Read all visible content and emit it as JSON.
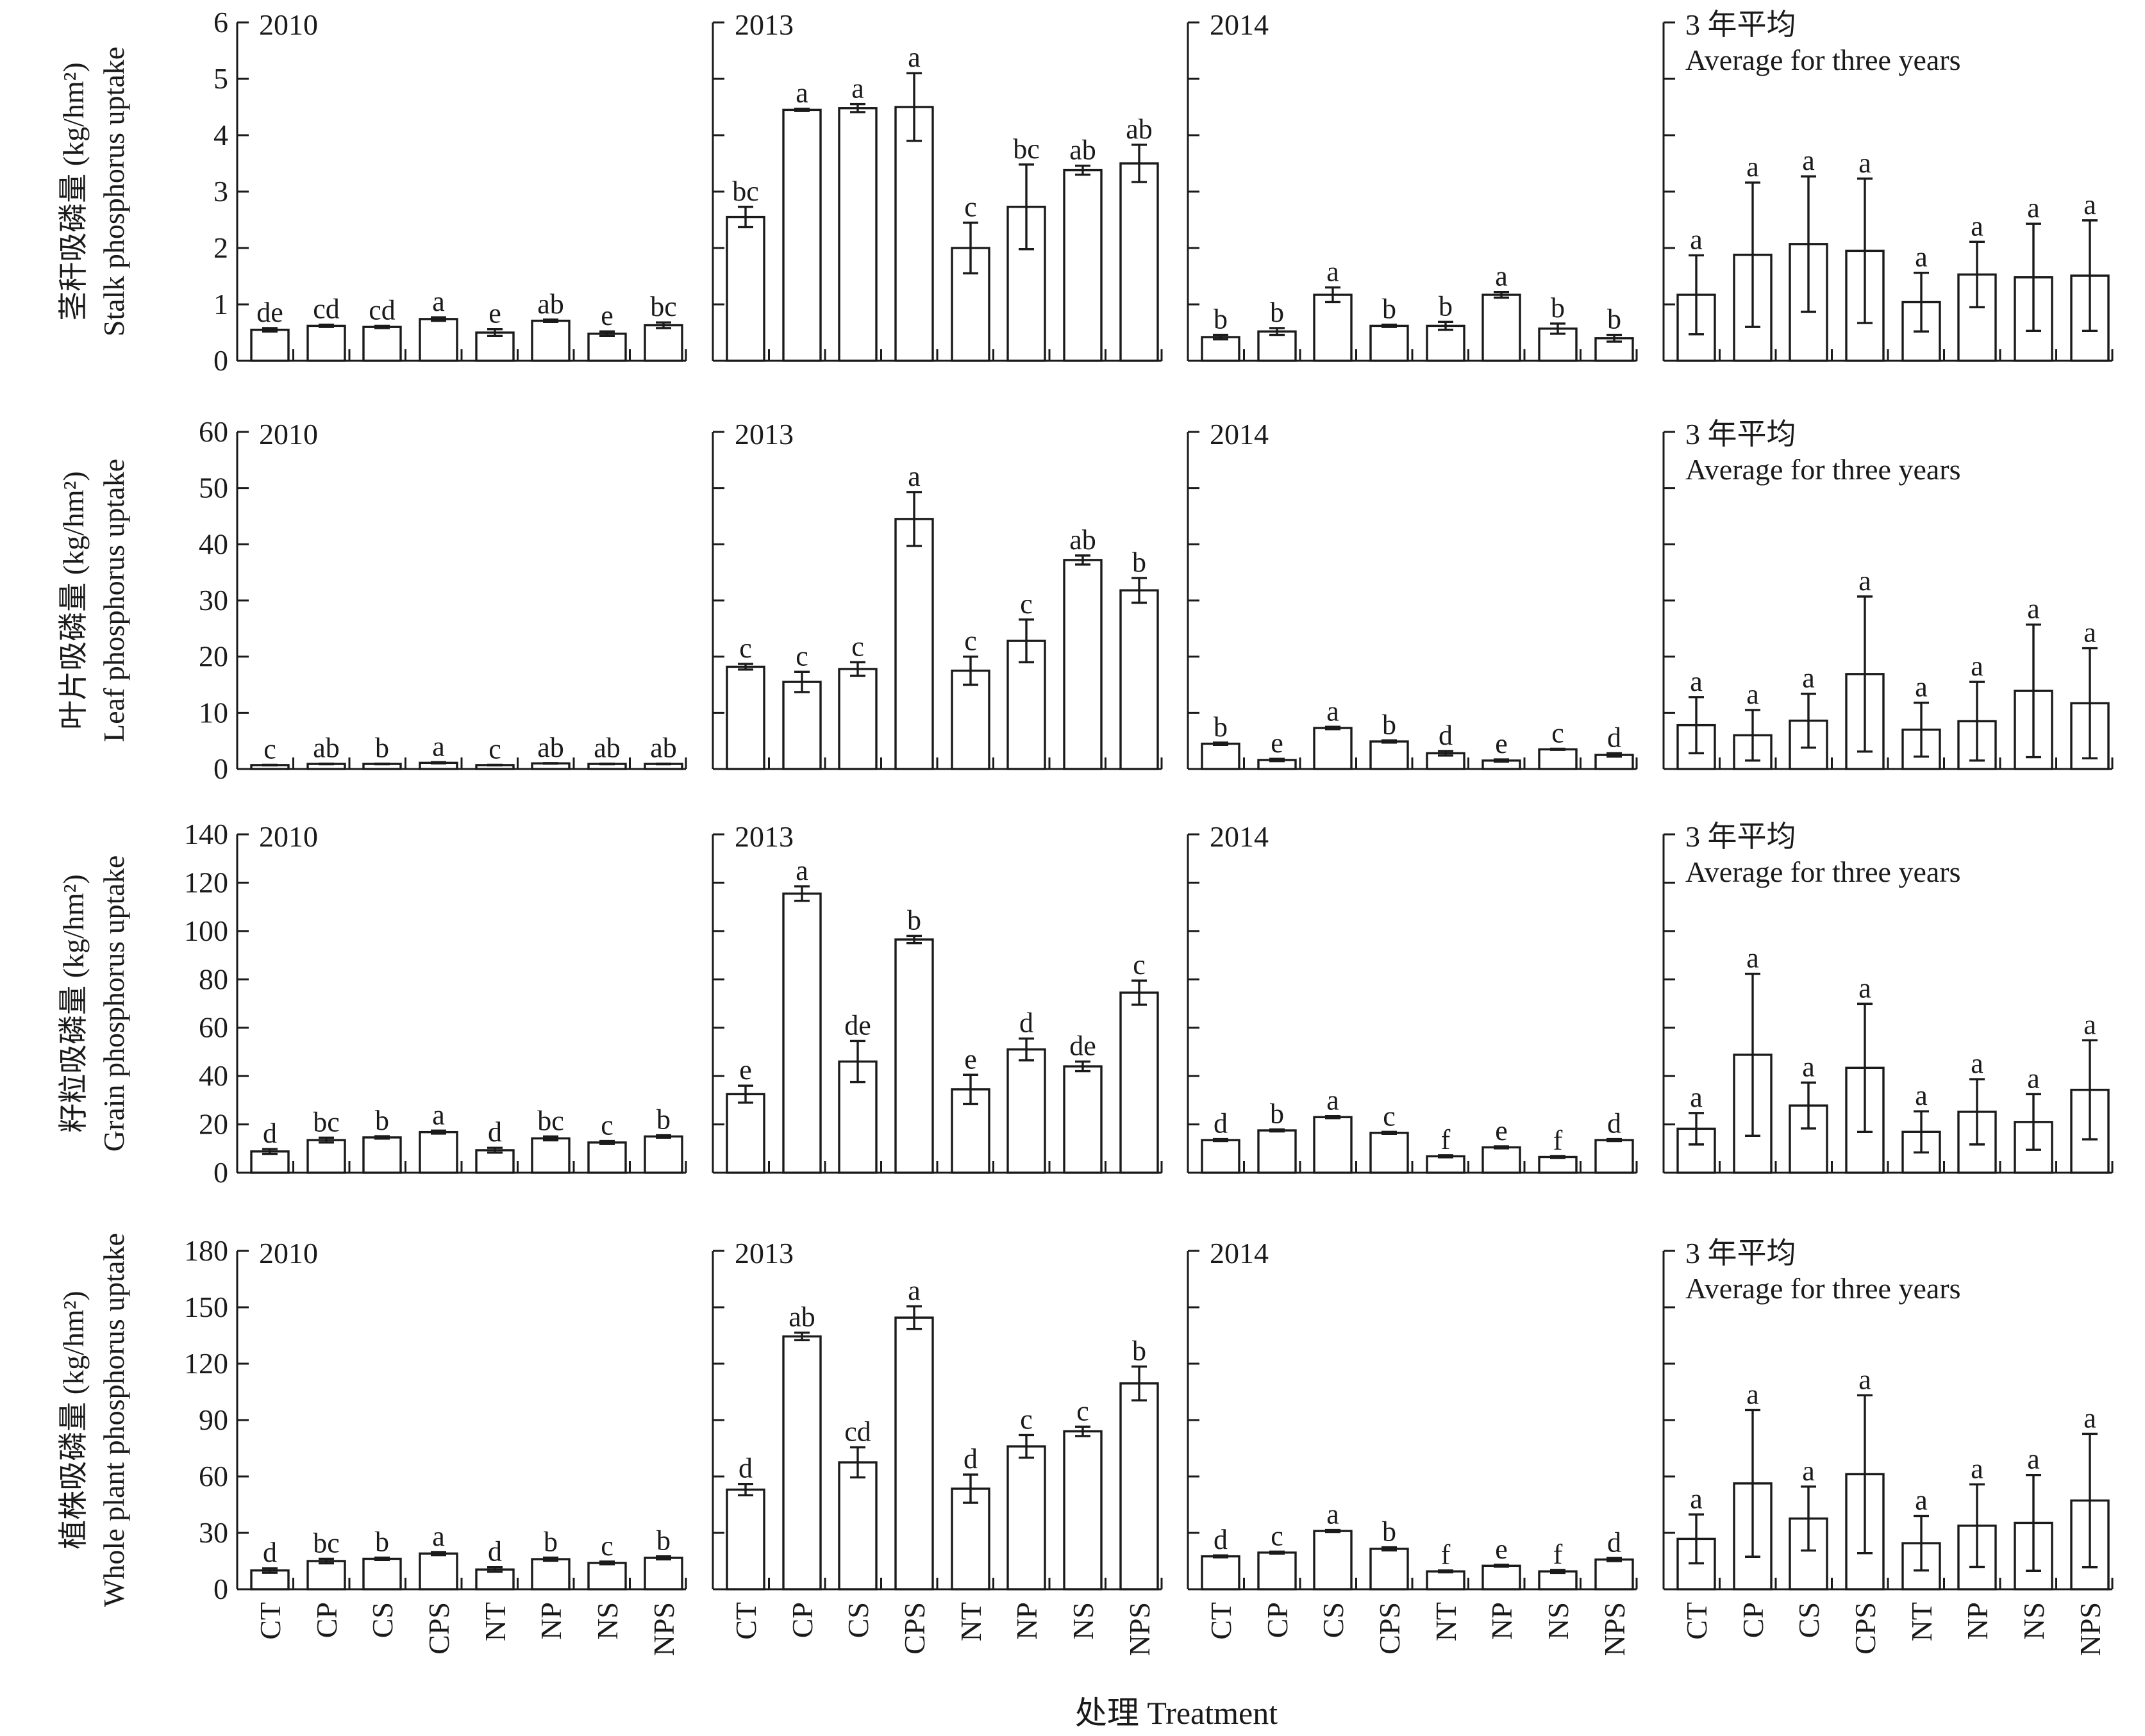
{
  "chart_data": {
    "type": "bar",
    "categories": [
      "CT",
      "CP",
      "CS",
      "CPS",
      "NT",
      "NP",
      "NS",
      "NPS"
    ],
    "column_titles": [
      {
        "line1": "2010",
        "line2": ""
      },
      {
        "line1": "2013",
        "line2": ""
      },
      {
        "line1": "2014",
        "line2": ""
      },
      {
        "line1": "3 年平均",
        "line2": "Average for three years"
      }
    ],
    "xlabel": "处理 Treatment",
    "rows": [
      {
        "ylabel_cn": "茎秆吸磷量 (kg/hm²)",
        "ylabel_en": "Stalk phosphorus uptake",
        "ylim": [
          0,
          6
        ],
        "yticks": [
          "0",
          "1",
          "2",
          "3",
          "4",
          "5",
          "6"
        ],
        "panels": [
          {
            "values": [
              0.55,
              0.62,
              0.6,
              0.74,
              0.5,
              0.71,
              0.48,
              0.63
            ],
            "errors": [
              0.03,
              0.02,
              0.02,
              0.03,
              0.06,
              0.02,
              0.04,
              0.05
            ],
            "letters": [
              "de",
              "cd",
              "cd",
              "a",
              "e",
              "ab",
              "e",
              "bc"
            ]
          },
          {
            "values": [
              2.55,
              4.45,
              4.48,
              4.5,
              2.0,
              2.73,
              3.38,
              3.5
            ],
            "errors": [
              0.18,
              0.02,
              0.07,
              0.6,
              0.45,
              0.75,
              0.08,
              0.33
            ],
            "letters": [
              "bc",
              "a",
              "a",
              "a",
              "c",
              "bc",
              "ab",
              "ab"
            ]
          },
          {
            "values": [
              0.42,
              0.52,
              1.17,
              0.62,
              0.62,
              1.17,
              0.57,
              0.4
            ],
            "errors": [
              0.04,
              0.06,
              0.13,
              0.02,
              0.07,
              0.05,
              0.09,
              0.06
            ],
            "letters": [
              "b",
              "b",
              "a",
              "b",
              "b",
              "a",
              "b",
              "b"
            ]
          },
          {
            "values": [
              1.17,
              1.88,
              2.07,
              1.95,
              1.04,
              1.53,
              1.48,
              1.51
            ],
            "errors": [
              0.7,
              1.28,
              1.2,
              1.28,
              0.52,
              0.58,
              0.95,
              0.98
            ],
            "letters": [
              "a",
              "a",
              "a",
              "a",
              "a",
              "a",
              "a",
              "a"
            ]
          }
        ]
      },
      {
        "ylabel_cn": "叶片吸磷量 (kg/hm²)",
        "ylabel_en": "Leaf phosphorus uptake",
        "ylim": [
          0,
          60
        ],
        "yticks": [
          "0",
          "10",
          "20",
          "30",
          "40",
          "50",
          "60"
        ],
        "panels": [
          {
            "values": [
              0.7,
              0.9,
              0.9,
              1.1,
              0.7,
              1.0,
              0.9,
              0.9
            ],
            "errors": [
              0.05,
              0.05,
              0.05,
              0.1,
              0.05,
              0.05,
              0.05,
              0.05
            ],
            "letters": [
              "c",
              "ab",
              "b",
              "a",
              "c",
              "ab",
              "ab",
              "ab"
            ]
          },
          {
            "values": [
              18.2,
              15.5,
              17.8,
              44.5,
              17.5,
              22.8,
              37.2,
              31.8
            ],
            "errors": [
              0.5,
              1.8,
              1.2,
              4.8,
              2.5,
              3.8,
              0.8,
              2.2
            ],
            "letters": [
              "c",
              "c",
              "c",
              "a",
              "c",
              "c",
              "ab",
              "b"
            ]
          },
          {
            "values": [
              4.5,
              1.6,
              7.3,
              4.9,
              2.8,
              1.5,
              3.5,
              2.5
            ],
            "errors": [
              0.2,
              0.2,
              0.2,
              0.2,
              0.4,
              0.2,
              0.1,
              0.3
            ],
            "letters": [
              "b",
              "e",
              "a",
              "b",
              "d",
              "e",
              "c",
              "d"
            ]
          },
          {
            "values": [
              7.8,
              6.0,
              8.6,
              16.9,
              7.0,
              8.5,
              13.9,
              11.7
            ],
            "errors": [
              5.0,
              4.5,
              4.8,
              13.8,
              4.8,
              7.0,
              11.8,
              9.8
            ],
            "letters": [
              "a",
              "a",
              "a",
              "a",
              "a",
              "a",
              "a",
              "a"
            ]
          }
        ]
      },
      {
        "ylabel_cn": "籽粒吸磷量 (kg/hm²)",
        "ylabel_en": "Grain phosphorus uptake",
        "ylim": [
          0,
          140
        ],
        "yticks": [
          "0",
          "20",
          "40",
          "60",
          "80",
          "100",
          "120",
          "140"
        ],
        "panels": [
          {
            "values": [
              8.8,
              13.5,
              14.6,
              16.8,
              9.3,
              14.2,
              12.5,
              15.0
            ],
            "errors": [
              1.0,
              1.0,
              0.5,
              0.6,
              1.0,
              0.8,
              0.6,
              0.5
            ],
            "letters": [
              "d",
              "bc",
              "b",
              "a",
              "d",
              "bc",
              "c",
              "b"
            ]
          },
          {
            "values": [
              32.5,
              115.5,
              46.0,
              96.5,
              34.5,
              51.0,
              44.0,
              74.5
            ],
            "errors": [
              3.5,
              3.0,
              8.5,
              1.5,
              6.0,
              4.5,
              2.0,
              5.0
            ],
            "letters": [
              "e",
              "a",
              "de",
              "b",
              "e",
              "d",
              "de",
              "c"
            ]
          },
          {
            "values": [
              13.5,
              17.5,
              23.0,
              16.5,
              6.8,
              10.5,
              6.5,
              13.5
            ],
            "errors": [
              0.4,
              0.4,
              0.4,
              0.4,
              0.4,
              0.4,
              0.4,
              0.4
            ],
            "letters": [
              "d",
              "b",
              "a",
              "c",
              "f",
              "e",
              "f",
              "d"
            ]
          },
          {
            "values": [
              18.2,
              48.8,
              27.8,
              43.4,
              16.9,
              25.2,
              21.0,
              34.3
            ],
            "errors": [
              6.5,
              33.5,
              9.5,
              26.5,
              8.5,
              13.5,
              11.5,
              20.5
            ],
            "letters": [
              "a",
              "a",
              "a",
              "a",
              "a",
              "a",
              "a",
              "a"
            ]
          }
        ]
      },
      {
        "ylabel_cn": "植株吸磷量 (kg/hm²)",
        "ylabel_en": "Whole plant phosphorus uptake",
        "ylim": [
          0,
          180
        ],
        "yticks": [
          "0",
          "30",
          "60",
          "90",
          "120",
          "150",
          "180"
        ],
        "panels": [
          {
            "values": [
              10.0,
              15.0,
              16.2,
              19.0,
              10.5,
              16.0,
              14.0,
              16.7
            ],
            "errors": [
              1.2,
              1.2,
              0.6,
              0.8,
              1.2,
              0.8,
              0.7,
              0.8
            ],
            "letters": [
              "d",
              "bc",
              "b",
              "a",
              "d",
              "b",
              "c",
              "b"
            ]
          },
          {
            "values": [
              53.0,
              134.5,
              67.5,
              144.5,
              53.5,
              76.0,
              84.0,
              109.5
            ],
            "errors": [
              3.0,
              2.0,
              8.0,
              6.0,
              7.5,
              6.0,
              2.5,
              9.0
            ],
            "letters": [
              "d",
              "ab",
              "cd",
              "a",
              "d",
              "c",
              "c",
              "b"
            ]
          },
          {
            "values": [
              17.5,
              19.5,
              31.0,
              21.5,
              9.5,
              12.5,
              9.5,
              15.8
            ],
            "errors": [
              0.5,
              0.5,
              0.5,
              0.8,
              0.5,
              0.5,
              0.8,
              0.8
            ],
            "letters": [
              "d",
              "c",
              "a",
              "b",
              "f",
              "e",
              "f",
              "d"
            ]
          },
          {
            "values": [
              26.8,
              56.3,
              37.6,
              61.2,
              24.5,
              33.8,
              35.3,
              47.2
            ],
            "errors": [
              13.0,
              39.0,
              17.0,
              42.0,
              14.5,
              22.0,
              25.5,
              35.5
            ],
            "letters": [
              "a",
              "a",
              "a",
              "a",
              "a",
              "a",
              "a",
              "a"
            ]
          }
        ]
      }
    ]
  }
}
